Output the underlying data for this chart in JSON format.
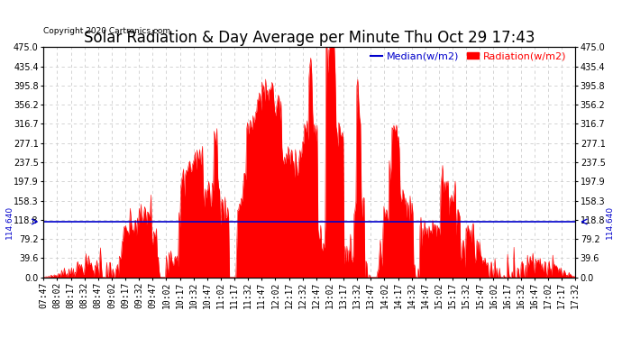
{
  "title": "Solar Radiation & Day Average per Minute Thu Oct 29 17:43",
  "copyright": "Copyright 2020 Cartronics.com",
  "legend_median": "Median(w/m2)",
  "legend_radiation": "Radiation(w/m2)",
  "median_value": 114.64,
  "ytick_labels": [
    "0.0",
    "39.6",
    "79.2",
    "118.8",
    "158.3",
    "197.9",
    "237.5",
    "277.1",
    "316.7",
    "356.2",
    "395.8",
    "435.4",
    "475.0"
  ],
  "ytick_values": [
    0.0,
    39.6,
    79.2,
    118.8,
    158.3,
    197.9,
    237.5,
    277.1,
    316.7,
    356.2,
    395.8,
    435.4,
    475.0
  ],
  "ylim": [
    0.0,
    475.0
  ],
  "xtick_labels": [
    "07:47",
    "08:02",
    "08:17",
    "08:32",
    "08:47",
    "09:02",
    "09:17",
    "09:32",
    "09:47",
    "10:02",
    "10:17",
    "10:32",
    "10:47",
    "11:02",
    "11:17",
    "11:32",
    "11:47",
    "12:02",
    "12:17",
    "12:32",
    "12:47",
    "13:02",
    "13:17",
    "13:32",
    "13:47",
    "14:02",
    "14:17",
    "14:32",
    "14:47",
    "15:02",
    "15:17",
    "15:32",
    "15:47",
    "16:02",
    "16:17",
    "16:32",
    "16:47",
    "17:02",
    "17:17",
    "17:32"
  ],
  "bg_color": "#ffffff",
  "fill_color": "#ff0000",
  "median_color": "#0000cc",
  "grid_color": "#cccccc",
  "title_fontsize": 12,
  "tick_fontsize": 7,
  "annotation_fontsize": 6.5,
  "copyright_fontsize": 6.5,
  "legend_fontsize": 8
}
